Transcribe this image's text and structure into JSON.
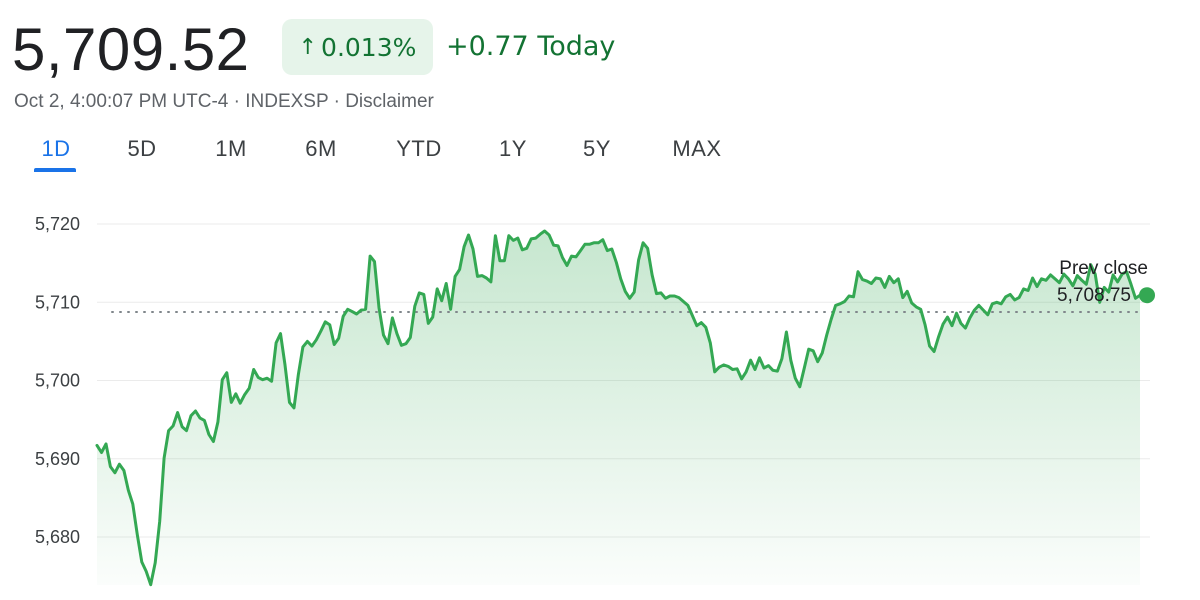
{
  "quote": {
    "price": "5,709.52",
    "change_percent": "0.013%",
    "change_today": "+0.77 Today",
    "meta": "Oct 2, 4:00:07 PM UTC-4 · INDEXSP · Disclaimer"
  },
  "tabs": [
    {
      "label": "1D",
      "active": true
    },
    {
      "label": "5D"
    },
    {
      "label": "1M"
    },
    {
      "label": "6M"
    },
    {
      "label": "YTD"
    },
    {
      "label": "1Y"
    },
    {
      "label": "5Y"
    },
    {
      "label": "MAX"
    }
  ],
  "colors": {
    "positive": "#137333",
    "line": "#34a853",
    "accent": "#1a73e8"
  },
  "chart_data": {
    "type": "area",
    "y_ticks": [
      "5,720",
      "5,710",
      "5,700",
      "5,690",
      "5,680"
    ],
    "ylim": [
      5673,
      5722
    ],
    "grid": true,
    "prev_close_label": "Prev close",
    "prev_close_value_label": "5,708.75",
    "prev_close": 5708.75,
    "points": [
      [
        0,
        5691.7
      ],
      [
        1,
        5690.8
      ],
      [
        2,
        5691.9
      ],
      [
        3,
        5689.0
      ],
      [
        4,
        5688.2
      ],
      [
        5,
        5689.3
      ],
      [
        6,
        5688.5
      ],
      [
        7,
        5686.0
      ],
      [
        8,
        5684.2
      ],
      [
        9,
        5680.3
      ],
      [
        10,
        5676.8
      ],
      [
        11,
        5675.6
      ],
      [
        12,
        5673.9
      ],
      [
        13,
        5676.7
      ],
      [
        14,
        5682.0
      ],
      [
        15,
        5690.1
      ],
      [
        16,
        5693.6
      ],
      [
        17,
        5694.2
      ],
      [
        18,
        5695.9
      ],
      [
        19,
        5694.1
      ],
      [
        20,
        5693.6
      ],
      [
        21,
        5695.5
      ],
      [
        22,
        5696.1
      ],
      [
        23,
        5695.2
      ],
      [
        24,
        5694.9
      ],
      [
        25,
        5693.1
      ],
      [
        26,
        5692.2
      ],
      [
        27,
        5694.7
      ],
      [
        28,
        5700.1
      ],
      [
        29,
        5701.0
      ],
      [
        30,
        5697.2
      ],
      [
        31,
        5698.3
      ],
      [
        32,
        5697.1
      ],
      [
        33,
        5698.2
      ],
      [
        34,
        5699.0
      ],
      [
        35,
        5701.4
      ],
      [
        36,
        5700.4
      ],
      [
        37,
        5700.1
      ],
      [
        38,
        5700.3
      ],
      [
        39,
        5699.9
      ],
      [
        40,
        5704.8
      ],
      [
        41,
        5706.0
      ],
      [
        42,
        5702.0
      ],
      [
        43,
        5697.2
      ],
      [
        44,
        5696.5
      ],
      [
        45,
        5700.8
      ],
      [
        46,
        5704.3
      ],
      [
        47,
        5705.0
      ],
      [
        48,
        5704.4
      ],
      [
        49,
        5705.2
      ],
      [
        50,
        5706.3
      ],
      [
        51,
        5707.5
      ],
      [
        52,
        5707.1
      ],
      [
        53,
        5704.6
      ],
      [
        54,
        5705.4
      ],
      [
        55,
        5708.2
      ],
      [
        56,
        5709.1
      ],
      [
        57,
        5708.8
      ],
      [
        58,
        5708.5
      ],
      [
        59,
        5709.0
      ],
      [
        60,
        5709.1
      ],
      [
        61,
        5715.9
      ],
      [
        62,
        5715.2
      ],
      [
        63,
        5709.3
      ],
      [
        64,
        5705.8
      ],
      [
        65,
        5704.7
      ],
      [
        66,
        5708.0
      ],
      [
        67,
        5706.0
      ],
      [
        68,
        5704.5
      ],
      [
        69,
        5704.7
      ],
      [
        70,
        5705.5
      ],
      [
        71,
        5709.5
      ],
      [
        72,
        5711.2
      ],
      [
        73,
        5711.0
      ],
      [
        74,
        5707.3
      ],
      [
        75,
        5708.1
      ],
      [
        76,
        5711.7
      ],
      [
        77,
        5710.2
      ],
      [
        78,
        5712.4
      ],
      [
        79,
        5709.1
      ],
      [
        80,
        5713.3
      ],
      [
        81,
        5714.2
      ],
      [
        82,
        5717.1
      ],
      [
        83,
        5718.6
      ],
      [
        84,
        5716.8
      ],
      [
        85,
        5713.3
      ],
      [
        86,
        5713.4
      ],
      [
        87,
        5713.1
      ],
      [
        88,
        5712.6
      ],
      [
        89,
        5718.5
      ],
      [
        90,
        5715.3
      ],
      [
        91,
        5715.3
      ],
      [
        92,
        5718.5
      ],
      [
        93,
        5717.9
      ],
      [
        94,
        5718.2
      ],
      [
        95,
        5716.7
      ],
      [
        96,
        5716.9
      ],
      [
        97,
        5718.1
      ],
      [
        98,
        5718.2
      ],
      [
        99,
        5718.7
      ],
      [
        100,
        5719.1
      ],
      [
        101,
        5718.6
      ],
      [
        102,
        5717.3
      ],
      [
        103,
        5717.2
      ],
      [
        104,
        5715.7
      ],
      [
        105,
        5714.7
      ],
      [
        106,
        5715.9
      ],
      [
        107,
        5715.8
      ],
      [
        108,
        5716.6
      ],
      [
        109,
        5717.4
      ],
      [
        110,
        5717.4
      ],
      [
        111,
        5717.6
      ],
      [
        112,
        5717.6
      ],
      [
        113,
        5718.0
      ],
      [
        114,
        5716.6
      ],
      [
        115,
        5716.8
      ],
      [
        116,
        5715.1
      ],
      [
        117,
        5713.0
      ],
      [
        118,
        5711.4
      ],
      [
        119,
        5710.5
      ],
      [
        120,
        5711.3
      ],
      [
        121,
        5715.4
      ],
      [
        122,
        5717.6
      ],
      [
        123,
        5716.9
      ],
      [
        124,
        5713.5
      ],
      [
        125,
        5711.1
      ],
      [
        126,
        5711.2
      ],
      [
        127,
        5710.5
      ],
      [
        128,
        5710.8
      ],
      [
        129,
        5710.8
      ],
      [
        130,
        5710.6
      ],
      [
        131,
        5710.1
      ],
      [
        132,
        5709.6
      ],
      [
        133,
        5708.3
      ],
      [
        134,
        5707.0
      ],
      [
        135,
        5707.4
      ],
      [
        136,
        5706.8
      ],
      [
        137,
        5704.8
      ],
      [
        138,
        5701.1
      ],
      [
        139,
        5701.7
      ],
      [
        140,
        5702.0
      ],
      [
        141,
        5701.8
      ],
      [
        142,
        5701.4
      ],
      [
        143,
        5701.5
      ],
      [
        144,
        5700.2
      ],
      [
        145,
        5701.1
      ],
      [
        146,
        5702.6
      ],
      [
        147,
        5701.4
      ],
      [
        148,
        5702.9
      ],
      [
        149,
        5701.6
      ],
      [
        150,
        5701.9
      ],
      [
        151,
        5701.3
      ],
      [
        152,
        5701.2
      ],
      [
        153,
        5702.8
      ],
      [
        154,
        5706.2
      ],
      [
        155,
        5702.6
      ],
      [
        156,
        5700.3
      ],
      [
        157,
        5699.2
      ],
      [
        158,
        5701.6
      ],
      [
        159,
        5704.0
      ],
      [
        160,
        5703.8
      ],
      [
        161,
        5702.4
      ],
      [
        162,
        5703.5
      ],
      [
        163,
        5705.8
      ],
      [
        164,
        5707.8
      ],
      [
        165,
        5709.6
      ],
      [
        166,
        5709.8
      ],
      [
        167,
        5710.1
      ],
      [
        168,
        5710.8
      ],
      [
        169,
        5710.7
      ],
      [
        170,
        5713.9
      ],
      [
        171,
        5712.9
      ],
      [
        172,
        5712.7
      ],
      [
        173,
        5712.4
      ],
      [
        174,
        5713.1
      ],
      [
        175,
        5713.0
      ],
      [
        176,
        5711.9
      ],
      [
        177,
        5713.3
      ],
      [
        178,
        5712.5
      ],
      [
        179,
        5713.0
      ],
      [
        180,
        5710.6
      ],
      [
        181,
        5711.4
      ],
      [
        182,
        5709.9
      ],
      [
        183,
        5709.4
      ],
      [
        184,
        5709.1
      ],
      [
        185,
        5707.1
      ],
      [
        186,
        5704.4
      ],
      [
        187,
        5703.7
      ],
      [
        188,
        5705.6
      ],
      [
        189,
        5707.2
      ],
      [
        190,
        5708.1
      ],
      [
        191,
        5707.0
      ],
      [
        192,
        5708.6
      ],
      [
        193,
        5707.3
      ],
      [
        194,
        5706.7
      ],
      [
        195,
        5708.0
      ],
      [
        196,
        5709.0
      ],
      [
        197,
        5709.6
      ],
      [
        198,
        5709.0
      ],
      [
        199,
        5708.4
      ],
      [
        200,
        5709.8
      ],
      [
        201,
        5710.0
      ],
      [
        202,
        5709.8
      ],
      [
        203,
        5710.7
      ],
      [
        204,
        5711.0
      ],
      [
        205,
        5710.3
      ],
      [
        206,
        5710.6
      ],
      [
        207,
        5711.7
      ],
      [
        208,
        5711.5
      ],
      [
        209,
        5713.1
      ],
      [
        210,
        5712.0
      ],
      [
        211,
        5713.0
      ],
      [
        212,
        5712.8
      ],
      [
        213,
        5713.5
      ],
      [
        214,
        5713.0
      ],
      [
        215,
        5712.5
      ],
      [
        216,
        5713.6
      ],
      [
        217,
        5713.0
      ],
      [
        218,
        5712.1
      ],
      [
        219,
        5713.4
      ],
      [
        220,
        5712.8
      ],
      [
        221,
        5712.3
      ],
      [
        222,
        5714.8
      ],
      [
        223,
        5713.6
      ],
      [
        224,
        5710.0
      ],
      [
        225,
        5711.9
      ],
      [
        226,
        5711.3
      ],
      [
        227,
        5713.5
      ],
      [
        228,
        5712.6
      ],
      [
        229,
        5713.6
      ],
      [
        230,
        5713.9
      ],
      [
        231,
        5712.3
      ],
      [
        232,
        5710.5
      ],
      [
        233,
        5710.9
      ]
    ]
  }
}
